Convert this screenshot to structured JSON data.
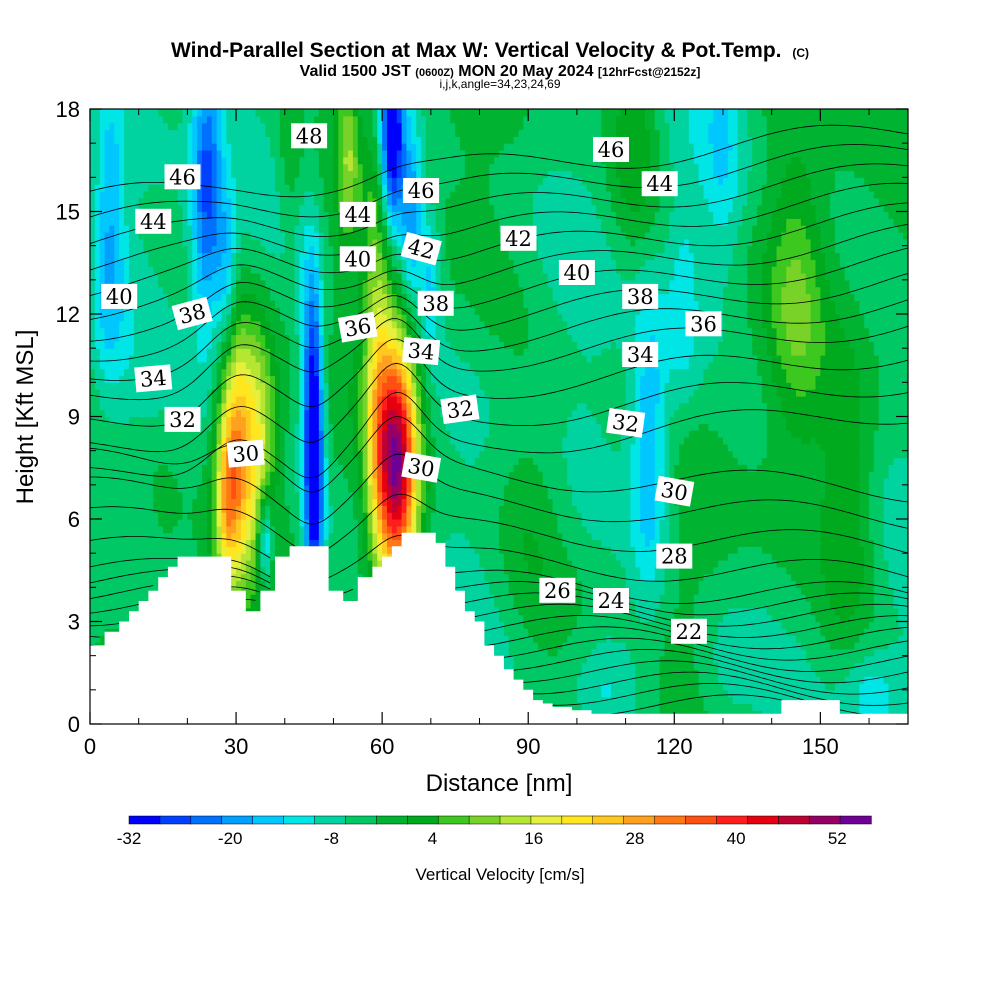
{
  "chart_data": {
    "type": "heatmap",
    "title": "Wind-Parallel Section at Max W: Vertical Velocity & Pot.Temp.",
    "title_suffix": "(C)",
    "subtitle_parts": [
      "Valid 1500 JST",
      "(0600Z)",
      "MON 20 May 2024",
      "[12hrFcst@2152z]"
    ],
    "subtitle2": "i,j,k,angle=34,23,24,69",
    "xlabel": "Distance [nm]",
    "ylabel": "Height [Kft MSL]",
    "xlim": [
      0,
      168
    ],
    "ylim": [
      0,
      18
    ],
    "x_ticks": [
      0,
      30,
      60,
      90,
      120,
      150
    ],
    "y_ticks": [
      0,
      3,
      6,
      9,
      12,
      15,
      18
    ],
    "colorbar": {
      "label": "Vertical Velocity [cm/s]",
      "min": -32,
      "max": 56,
      "step": 4,
      "tick_values": [
        -32,
        -20,
        -8,
        4,
        16,
        28,
        40,
        52
      ],
      "tick_labels": [
        "-32",
        "-20",
        "-8",
        "4",
        "16",
        "28",
        "40",
        "52"
      ],
      "colors": [
        "#0000ff",
        "#0040ff",
        "#0070ff",
        "#00a0ff",
        "#00c8ff",
        "#00e6e6",
        "#00d2a0",
        "#00c864",
        "#00b432",
        "#00aa1e",
        "#3cc81e",
        "#78d228",
        "#b4e632",
        "#e6f03c",
        "#ffe61e",
        "#ffc81e",
        "#ffa01e",
        "#ff7814",
        "#ff5014",
        "#ff1e1e",
        "#e6000f",
        "#be0032",
        "#960064",
        "#6e0096"
      ]
    },
    "contour_labels": [
      {
        "text": "48",
        "x": 45,
        "y": 17.2,
        "angle": 0
      },
      {
        "text": "46",
        "x": 19,
        "y": 16.0,
        "angle": 0
      },
      {
        "text": "46",
        "x": 68,
        "y": 15.6,
        "angle": 0
      },
      {
        "text": "46",
        "x": 107,
        "y": 16.8,
        "angle": 0
      },
      {
        "text": "44",
        "x": 13,
        "y": 14.7,
        "angle": 0
      },
      {
        "text": "44",
        "x": 55,
        "y": 14.9,
        "angle": 0
      },
      {
        "text": "44",
        "x": 117,
        "y": 15.8,
        "angle": 0
      },
      {
        "text": "42",
        "x": 68,
        "y": 13.9,
        "angle": 15
      },
      {
        "text": "42",
        "x": 88,
        "y": 14.2,
        "angle": 0
      },
      {
        "text": "40",
        "x": 6,
        "y": 12.5,
        "angle": 0
      },
      {
        "text": "40",
        "x": 55,
        "y": 13.6,
        "angle": 0
      },
      {
        "text": "40",
        "x": 100,
        "y": 13.2,
        "angle": 0
      },
      {
        "text": "38",
        "x": 21,
        "y": 12.0,
        "angle": -15
      },
      {
        "text": "38",
        "x": 71,
        "y": 12.3,
        "angle": 0
      },
      {
        "text": "38",
        "x": 113,
        "y": 12.5,
        "angle": 0
      },
      {
        "text": "36",
        "x": 55,
        "y": 11.6,
        "angle": -10
      },
      {
        "text": "36",
        "x": 126,
        "y": 11.7,
        "angle": 0
      },
      {
        "text": "34",
        "x": 13,
        "y": 10.1,
        "angle": -5
      },
      {
        "text": "34",
        "x": 68,
        "y": 10.9,
        "angle": 5
      },
      {
        "text": "34",
        "x": 113,
        "y": 10.8,
        "angle": 0
      },
      {
        "text": "32",
        "x": 19,
        "y": 8.9,
        "angle": 0
      },
      {
        "text": "32",
        "x": 76,
        "y": 9.2,
        "angle": -8
      },
      {
        "text": "32",
        "x": 110,
        "y": 8.8,
        "angle": 8
      },
      {
        "text": "30",
        "x": 32,
        "y": 7.9,
        "angle": -5
      },
      {
        "text": "30",
        "x": 68,
        "y": 7.5,
        "angle": 10
      },
      {
        "text": "30",
        "x": 120,
        "y": 6.8,
        "angle": 10
      },
      {
        "text": "28",
        "x": 120,
        "y": 4.9,
        "angle": 0
      },
      {
        "text": "26",
        "x": 96,
        "y": 3.9,
        "angle": 0
      },
      {
        "text": "24",
        "x": 107,
        "y": 3.6,
        "angle": 0
      },
      {
        "text": "22",
        "x": 123,
        "y": 2.7,
        "angle": 0
      }
    ],
    "terrain_heights": [
      2.3,
      2.3,
      2.3,
      2.7,
      2.7,
      2.7,
      3.0,
      3.0,
      3.3,
      3.3,
      3.6,
      3.6,
      3.9,
      3.9,
      4.3,
      4.3,
      4.6,
      4.6,
      4.9,
      4.9,
      4.9,
      4.9,
      4.9,
      4.9,
      4.9,
      4.9,
      4.9,
      4.9,
      4.9,
      3.9,
      3.9,
      3.9,
      3.3,
      3.3,
      3.3,
      3.9,
      3.9,
      3.9,
      4.9,
      4.9,
      4.9,
      5.2,
      5.2,
      5.2,
      5.2,
      5.2,
      5.2,
      5.2,
      5.2,
      3.9,
      3.9,
      3.9,
      3.6,
      3.6,
      3.6,
      4.3,
      4.3,
      4.3,
      4.6,
      4.6,
      4.9,
      4.9,
      5.2,
      5.2,
      5.6,
      5.6,
      5.6,
      5.6,
      5.6,
      5.6,
      5.6,
      5.3,
      5.3,
      4.6,
      4.6,
      3.9,
      3.9,
      3.3,
      3.3,
      3.0,
      3.0,
      2.3,
      2.3,
      2.0,
      2.0,
      1.6,
      1.6,
      1.3,
      1.3,
      1.0,
      1.0,
      0.7,
      0.7,
      0.6,
      0.6,
      0.5,
      0.5,
      0.5,
      0.5,
      0.4,
      0.4,
      0.4,
      0.4,
      0.3,
      0.3,
      0.3,
      0.3,
      0.3,
      0.3,
      0.3,
      0.3,
      0.3,
      0.3,
      0.3,
      0.3,
      0.3,
      0.3,
      0.3,
      0.3,
      0.3,
      0.3,
      0.3,
      0.3,
      0.3,
      0.3,
      0.3,
      0.3,
      0.3,
      0.3,
      0.3,
      0.3,
      0.3,
      0.3,
      0.3,
      0.3,
      0.3,
      0.3,
      0.3,
      0.3,
      0.3,
      0.3,
      0.3,
      0.7,
      0.7,
      0.7,
      0.7,
      0.7,
      0.7,
      0.7,
      0.7,
      0.7,
      0.7,
      0.7,
      0.7,
      0.3,
      0.3,
      0.3,
      0.3,
      0.3,
      0.3,
      0.3,
      0.3,
      0.3,
      0.3,
      0.3,
      0.3,
      0.3,
      0.3,
      0.3,
      0.3,
      0.3,
      0.3,
      0.3
    ],
    "velocity_features": [
      {
        "x": 30,
        "y": 8.0,
        "sx": 2.6,
        "sy": 2.4,
        "amp": 34
      },
      {
        "x": 28,
        "y": 6.2,
        "sx": 1.6,
        "sy": 1.6,
        "amp": 14
      },
      {
        "x": 35,
        "y": 8.4,
        "sx": 2.4,
        "sy": 2.2,
        "amp": 18
      },
      {
        "x": 36,
        "y": 5.4,
        "sx": 1.1,
        "sy": 1.0,
        "amp": -20
      },
      {
        "x": 46,
        "y": 7.6,
        "sx": 1.4,
        "sy": 3.2,
        "amp": -34
      },
      {
        "x": 45,
        "y": 11,
        "sx": 1.6,
        "sy": 2.5,
        "amp": -10
      },
      {
        "x": 63,
        "y": 7.6,
        "sx": 3.0,
        "sy": 2.6,
        "amp": 58
      },
      {
        "x": 59,
        "y": 10.5,
        "sx": 2.0,
        "sy": 4.0,
        "amp": 16
      },
      {
        "x": 62,
        "y": 17.2,
        "sx": 1.7,
        "sy": 2.0,
        "amp": -36
      },
      {
        "x": 66,
        "y": 14.8,
        "sx": 1.7,
        "sy": 1.8,
        "amp": -20
      },
      {
        "x": 70,
        "y": 13.0,
        "sx": 1.5,
        "sy": 1.5,
        "amp": -12
      },
      {
        "x": 53,
        "y": 16.8,
        "sx": 1.6,
        "sy": 1.9,
        "amp": 14
      },
      {
        "x": 41,
        "y": 17.2,
        "sx": 1.6,
        "sy": 1.8,
        "amp": 6
      },
      {
        "x": 24,
        "y": 15.5,
        "sx": 2.2,
        "sy": 3.2,
        "amp": -22
      },
      {
        "x": 28,
        "y": 13.0,
        "sx": 1.6,
        "sy": 1.8,
        "amp": -12
      },
      {
        "x": 4,
        "y": 14.5,
        "sx": 2.4,
        "sy": 3.0,
        "amp": -14
      },
      {
        "x": 115,
        "y": 8.2,
        "sx": 2.8,
        "sy": 3.2,
        "amp": -16
      },
      {
        "x": 122,
        "y": 12.3,
        "sx": 2.5,
        "sy": 2.5,
        "amp": -8
      },
      {
        "x": 130,
        "y": 16.5,
        "sx": 3.0,
        "sy": 2.5,
        "amp": -8
      },
      {
        "x": 112,
        "y": 17.2,
        "sx": 3.5,
        "sy": 2.5,
        "amp": 9
      },
      {
        "x": 145,
        "y": 12.5,
        "sx": 4.0,
        "sy": 3.0,
        "amp": 10
      },
      {
        "x": 156,
        "y": 6.5,
        "sx": 4.0,
        "sy": 3.0,
        "amp": 9
      },
      {
        "x": 106,
        "y": 1.2,
        "sx": 5.0,
        "sy": 1.2,
        "amp": -8
      },
      {
        "x": 130,
        "y": 1.5,
        "sx": 5.0,
        "sy": 1.5,
        "amp": -6
      },
      {
        "x": 160,
        "y": 0.9,
        "sx": 4.0,
        "sy": 1.0,
        "amp": -7
      },
      {
        "x": 90,
        "y": 6.0,
        "sx": 5.0,
        "sy": 2.5,
        "amp": 5
      },
      {
        "x": 15,
        "y": 7.0,
        "sx": 3.0,
        "sy": 2.0,
        "amp": 3
      }
    ]
  }
}
